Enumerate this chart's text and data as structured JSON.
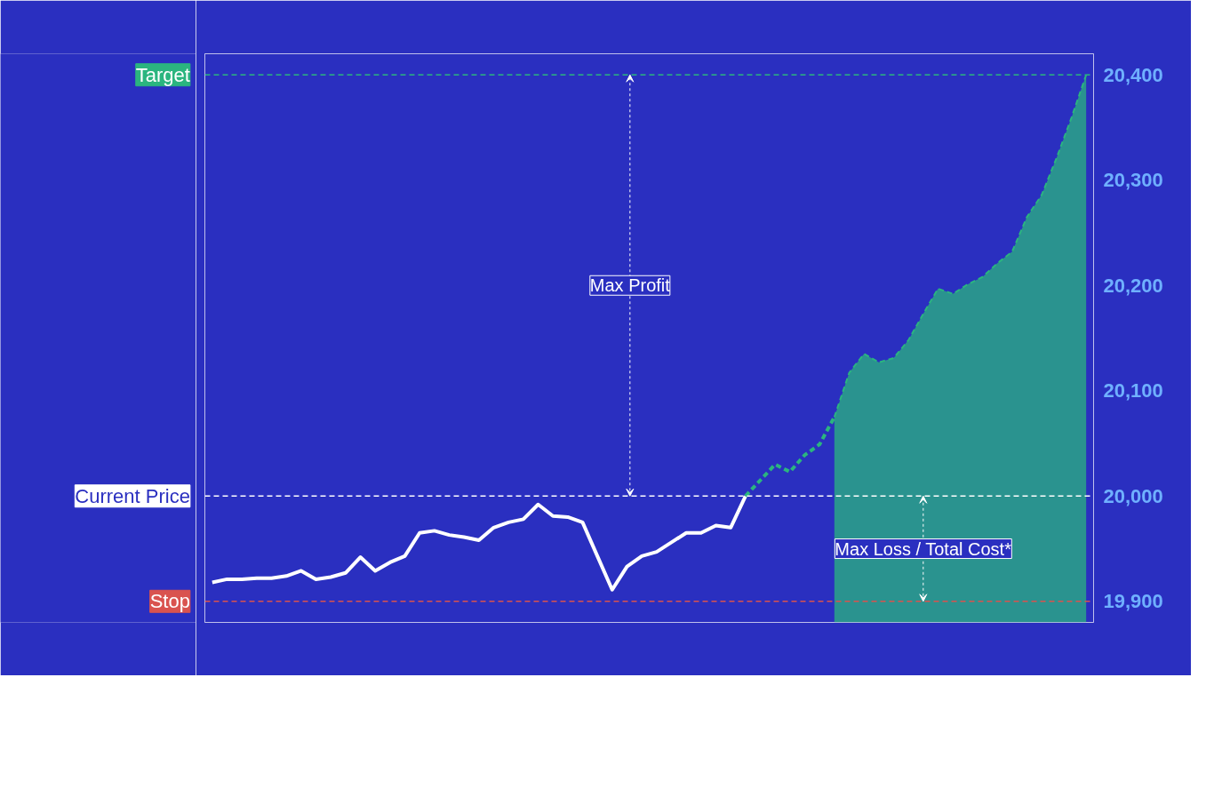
{
  "chart_data": {
    "type": "line",
    "categories": [
      null,
      null,
      null,
      null,
      null,
      null,
      null,
      null,
      null,
      null,
      null,
      null,
      null,
      null,
      null,
      null,
      null,
      null,
      null,
      null,
      null,
      null,
      null,
      null,
      null,
      null,
      null,
      null,
      null,
      null,
      null,
      null,
      null,
      null,
      null,
      null,
      null,
      null,
      null,
      null,
      null,
      null,
      null,
      null,
      null,
      null,
      null,
      null,
      null,
      null,
      null,
      null,
      null,
      null,
      null,
      null,
      null,
      null,
      null,
      null
    ],
    "series": [
      {
        "color": "#ffffff",
        "line_style": "solid",
        "values": [
          19918,
          19921,
          19921,
          19922,
          19922,
          19924,
          19929,
          19921,
          19923,
          19927,
          19942,
          19929,
          19937,
          19943,
          19965,
          19967,
          19963,
          19961,
          19958,
          19970,
          19975,
          19978,
          19992,
          19981,
          19980,
          19975,
          19943,
          19911,
          19933,
          19943,
          19947,
          19956,
          19965,
          19965,
          19972,
          19970,
          20000,
          null,
          null,
          null,
          null,
          null,
          null,
          null,
          null,
          null,
          null,
          null,
          null,
          null,
          null,
          null,
          null,
          null,
          null,
          null,
          null,
          null,
          null,
          null
        ]
      },
      {
        "type": "line",
        "color": "#2bb57f",
        "line_style": "dashed",
        "values": [
          null,
          null,
          null,
          null,
          null,
          null,
          null,
          null,
          null,
          null,
          null,
          null,
          null,
          null,
          null,
          null,
          null,
          null,
          null,
          null,
          null,
          null,
          null,
          null,
          null,
          null,
          null,
          null,
          null,
          null,
          null,
          null,
          null,
          null,
          null,
          null,
          20000,
          20015,
          20030,
          20023,
          20039,
          20049,
          20075,
          null,
          null,
          null,
          null,
          null,
          null,
          null,
          null,
          null,
          null,
          null,
          null,
          null,
          null,
          null,
          null,
          null
        ]
      },
      {
        "type": "area",
        "color": "#2bb57f",
        "line_style": "dashed",
        "values": [
          null,
          null,
          null,
          null,
          null,
          null,
          null,
          null,
          null,
          null,
          null,
          null,
          null,
          null,
          null,
          null,
          null,
          null,
          null,
          null,
          null,
          null,
          null,
          null,
          null,
          null,
          null,
          null,
          null,
          null,
          null,
          null,
          null,
          null,
          null,
          null,
          null,
          null,
          null,
          null,
          null,
          null,
          20075,
          20117,
          20135,
          20127,
          20131,
          20148,
          20173,
          20197,
          20192,
          20201,
          20208,
          20221,
          20232,
          20265,
          20286,
          20321,
          20359,
          20400
        ]
      }
    ],
    "ylim": [
      19880,
      20420
    ],
    "yticks": [
      {
        "value": 19900,
        "label": "19,900"
      },
      {
        "value": 20000,
        "label": "20,000"
      },
      {
        "value": 20100,
        "label": "20,100"
      },
      {
        "value": 20200,
        "label": "20,200"
      },
      {
        "value": 20300,
        "label": "20,300"
      },
      {
        "value": 20400,
        "label": "20,400"
      }
    ],
    "ref_lines": [
      {
        "axis": "y",
        "value": 20400,
        "label": "Target",
        "color": "#2bb57f",
        "line_style": "dashed"
      },
      {
        "axis": "y",
        "value": 20000,
        "label": "Current Price",
        "color": "#ffffff",
        "line_style": "dashed"
      },
      {
        "axis": "y",
        "value": 19900,
        "label": "Stop",
        "color": "#d9534f",
        "line_style": "dashed"
      }
    ],
    "annotations": [
      "Max Profit",
      "Max Loss / Total Cost*"
    ],
    "tick_labels": "y",
    "grid": false
  }
}
